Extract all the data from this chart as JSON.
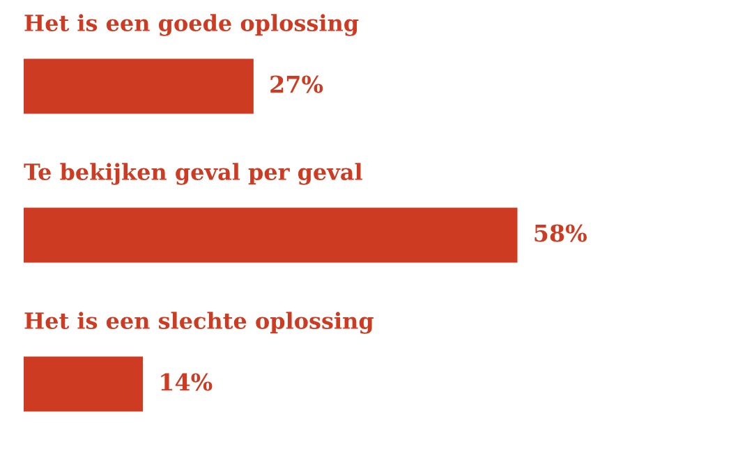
{
  "chart_data": {
    "type": "bar",
    "orientation": "horizontal",
    "categories": [
      "Het is een goede oplossing",
      "Te bekijken geval per geval",
      "Het is een slechte oplossing"
    ],
    "values": [
      27,
      58,
      14
    ],
    "value_labels": [
      "27%",
      "58%",
      "14%"
    ],
    "color": "#cc3b22",
    "legend": false
  }
}
